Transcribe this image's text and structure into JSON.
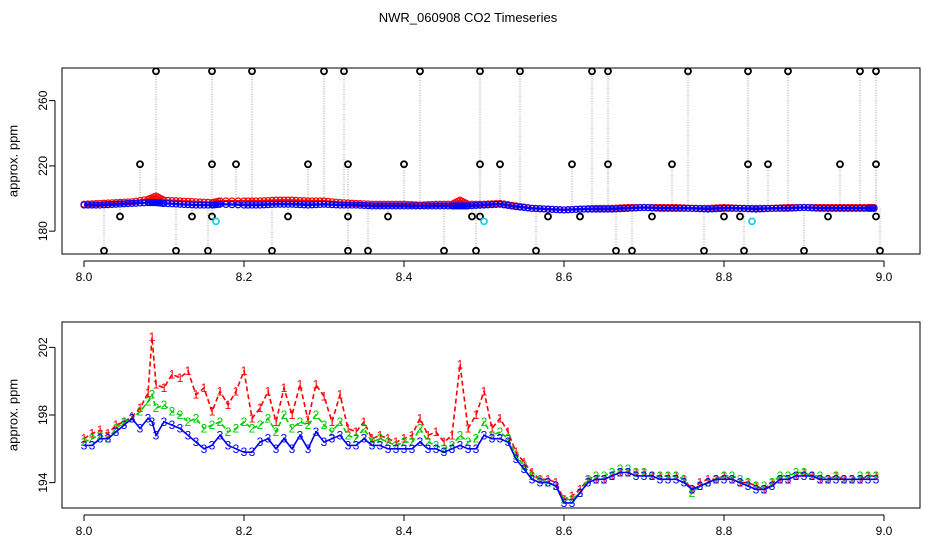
{
  "title": "NWR_060908  CO2 Timeseries",
  "colors": {
    "red": "#ff0000",
    "green": "#00cc00",
    "blue": "#0000ff",
    "cyan": "#22ccee",
    "black": "#000000",
    "gray": "#9a9a9a"
  },
  "chart_data": [
    {
      "type": "scatter",
      "panel": "top",
      "title": "",
      "xlabel": "",
      "ylabel": "approx. ppm",
      "xlim": [
        8.0,
        9.0
      ],
      "ylim": [
        166,
        280
      ],
      "xticks": [
        "8.0",
        "8.2",
        "8.4",
        "8.6",
        "8.8",
        "9.0"
      ],
      "xtick_values": [
        8.0,
        8.2,
        8.4,
        8.6,
        8.8,
        9.0
      ],
      "yticks": [
        "180",
        "220",
        "260"
      ],
      "ytick_values": [
        180,
        220,
        260
      ],
      "baseline_series": [
        {
          "name": "red",
          "x": [
            8.0,
            8.02,
            8.04,
            8.06,
            8.08,
            8.09,
            8.1,
            8.12,
            8.14,
            8.16,
            8.17,
            8.2,
            8.22,
            8.24,
            8.26,
            8.28,
            8.3,
            8.32,
            8.34,
            8.36,
            8.38,
            8.4,
            8.42,
            8.44,
            8.46,
            8.47,
            8.48,
            8.5,
            8.52,
            8.54,
            8.56,
            8.58,
            8.6,
            8.62,
            8.64,
            8.66,
            8.68,
            8.7,
            8.72,
            8.74,
            8.76,
            8.78,
            8.8,
            8.82,
            8.84,
            8.86,
            8.88,
            8.9,
            8.92,
            8.94,
            8.96,
            8.98,
            8.99
          ],
          "values": [
            196.5,
            197,
            197.5,
            198,
            199.5,
            201.5,
            199,
            198.5,
            198,
            197.5,
            198.5,
            198.5,
            198.5,
            199,
            199,
            198.5,
            198.5,
            197.5,
            197,
            196.5,
            196.5,
            196.5,
            196,
            196.5,
            196.5,
            199,
            196.5,
            196.5,
            197,
            195.5,
            194,
            193.5,
            193,
            193.5,
            194,
            194,
            194.5,
            194.5,
            194.5,
            194.5,
            194,
            194,
            194.5,
            194,
            194,
            194,
            194.5,
            194.5,
            194.5,
            194.5,
            194.5,
            194.5,
            194.5
          ]
        },
        {
          "name": "blue",
          "x": [
            8.0,
            8.02,
            8.04,
            8.06,
            8.08,
            8.09,
            8.1,
            8.12,
            8.14,
            8.16,
            8.17,
            8.2,
            8.22,
            8.24,
            8.26,
            8.28,
            8.3,
            8.32,
            8.34,
            8.36,
            8.38,
            8.4,
            8.42,
            8.44,
            8.46,
            8.47,
            8.48,
            8.5,
            8.52,
            8.54,
            8.56,
            8.58,
            8.6,
            8.62,
            8.64,
            8.66,
            8.68,
            8.7,
            8.72,
            8.74,
            8.76,
            8.78,
            8.8,
            8.82,
            8.84,
            8.86,
            8.88,
            8.9,
            8.92,
            8.94,
            8.96,
            8.98,
            8.99
          ],
          "values": [
            196,
            196,
            196.5,
            197,
            197.5,
            197.5,
            197,
            196.5,
            196,
            196,
            196.5,
            196,
            196,
            196.5,
            196.5,
            196,
            196.5,
            196,
            196,
            195.5,
            195.5,
            195.5,
            195.5,
            195.5,
            195.5,
            195.5,
            195.5,
            196,
            196.5,
            195,
            194,
            193.5,
            193,
            193.5,
            193.5,
            193.5,
            194,
            194.5,
            194,
            194,
            194,
            193.5,
            194,
            194,
            193.5,
            194,
            194,
            194.5,
            194,
            194,
            194,
            194,
            194
          ]
        }
      ],
      "spike_high": [
        8.09,
        8.16,
        8.21,
        8.3,
        8.325,
        8.42,
        8.495,
        8.545,
        8.635,
        8.655,
        8.755,
        8.83,
        8.88,
        8.97,
        8.99
      ],
      "spike_high_value": 278,
      "spike_mid": [
        8.07,
        8.16,
        8.19,
        8.28,
        8.33,
        8.4,
        8.495,
        8.52,
        8.61,
        8.655,
        8.735,
        8.83,
        8.855,
        8.945,
        8.99
      ],
      "spike_mid_value": 221,
      "spike_low": [
        8.025,
        8.115,
        8.155,
        8.235,
        8.33,
        8.355,
        8.45,
        8.49,
        8.565,
        8.665,
        8.685,
        8.775,
        8.825,
        8.9,
        8.995
      ],
      "spike_low_value": 168,
      "dip_points": [
        8.045,
        8.135,
        8.16,
        8.255,
        8.33,
        8.38,
        8.485,
        8.495,
        8.58,
        8.62,
        8.71,
        8.8,
        8.82,
        8.93,
        8.99
      ],
      "dip_value": 189,
      "cyan_points": {
        "x": [
          8.165,
          8.5,
          8.835
        ],
        "values": [
          186,
          186,
          186
        ]
      }
    },
    {
      "type": "line",
      "panel": "bottom",
      "title": "",
      "xlabel": "",
      "ylabel": "approx. ppm",
      "xlim": [
        8.0,
        9.0
      ],
      "ylim": [
        192.5,
        203.5
      ],
      "xticks": [
        "8.0",
        "8.2",
        "8.4",
        "8.6",
        "8.8",
        "9.0"
      ],
      "xtick_values": [
        8.0,
        8.2,
        8.4,
        8.6,
        8.8,
        9.0
      ],
      "yticks": [
        "194",
        "198",
        "202"
      ],
      "ytick_values": [
        194,
        198,
        202
      ],
      "series": [
        {
          "name": "1",
          "marker": "1",
          "color": "red",
          "x": [
            8.0,
            8.01,
            8.02,
            8.03,
            8.04,
            8.05,
            8.06,
            8.07,
            8.08,
            8.085,
            8.09,
            8.1,
            8.11,
            8.12,
            8.13,
            8.14,
            8.15,
            8.16,
            8.17,
            8.18,
            8.19,
            8.2,
            8.21,
            8.22,
            8.23,
            8.24,
            8.25,
            8.26,
            8.27,
            8.28,
            8.29,
            8.3,
            8.31,
            8.32,
            8.33,
            8.34,
            8.35,
            8.36,
            8.37,
            8.38,
            8.39,
            8.4,
            8.41,
            8.42,
            8.43,
            8.44,
            8.45,
            8.46,
            8.47,
            8.48,
            8.49,
            8.5,
            8.51,
            8.52,
            8.53,
            8.54,
            8.55,
            8.56,
            8.57,
            8.58,
            8.59,
            8.6,
            8.61,
            8.62,
            8.63,
            8.64,
            8.65,
            8.66,
            8.67,
            8.68,
            8.69,
            8.7,
            8.71,
            8.72,
            8.73,
            8.74,
            8.75,
            8.76,
            8.77,
            8.78,
            8.79,
            8.8,
            8.81,
            8.82,
            8.83,
            8.84,
            8.85,
            8.86,
            8.87,
            8.88,
            8.89,
            8.9,
            8.91,
            8.92,
            8.93,
            8.94,
            8.95,
            8.96,
            8.97,
            8.98,
            8.99
          ],
          "values": [
            196.6,
            196.9,
            197.1,
            196.9,
            197.4,
            197.6,
            197.9,
            198.4,
            199.3,
            202.6,
            199.8,
            199.6,
            200.4,
            200.2,
            200.6,
            199.2,
            199.6,
            198.2,
            199.4,
            198.6,
            199.4,
            200.6,
            197.8,
            198.4,
            199.4,
            197.6,
            199.6,
            198.0,
            199.8,
            197.7,
            199.8,
            199.1,
            197.6,
            199.2,
            197.2,
            197.0,
            197.6,
            196.6,
            196.8,
            196.6,
            196.4,
            196.6,
            196.8,
            197.8,
            196.8,
            197.0,
            196.4,
            196.8,
            201.0,
            197.2,
            198.0,
            199.4,
            197.2,
            197.8,
            197.0,
            195.8,
            195.2,
            194.6,
            194.2,
            194.2,
            194.0,
            193.0,
            193.2,
            193.6,
            194.2,
            194.2,
            194.2,
            194.4,
            194.6,
            194.6,
            194.6,
            194.6,
            194.4,
            194.4,
            194.4,
            194.4,
            194.2,
            193.6,
            194.0,
            194.2,
            194.2,
            194.4,
            194.2,
            194.0,
            194.0,
            193.8,
            193.6,
            194.0,
            194.2,
            194.2,
            194.4,
            194.6,
            194.4,
            194.2,
            194.2,
            194.4,
            194.2,
            194.2,
            194.2,
            194.4,
            194.4
          ]
        },
        {
          "name": "2",
          "marker": "2",
          "color": "green",
          "x": [
            8.0,
            8.01,
            8.02,
            8.03,
            8.04,
            8.05,
            8.06,
            8.07,
            8.08,
            8.085,
            8.09,
            8.1,
            8.11,
            8.12,
            8.13,
            8.14,
            8.15,
            8.16,
            8.17,
            8.18,
            8.19,
            8.2,
            8.21,
            8.22,
            8.23,
            8.24,
            8.25,
            8.26,
            8.27,
            8.28,
            8.29,
            8.3,
            8.31,
            8.32,
            8.33,
            8.34,
            8.35,
            8.36,
            8.37,
            8.38,
            8.39,
            8.4,
            8.41,
            8.42,
            8.43,
            8.44,
            8.45,
            8.46,
            8.47,
            8.48,
            8.49,
            8.5,
            8.51,
            8.52,
            8.53,
            8.54,
            8.55,
            8.56,
            8.57,
            8.58,
            8.59,
            8.6,
            8.61,
            8.62,
            8.63,
            8.64,
            8.65,
            8.66,
            8.67,
            8.68,
            8.69,
            8.7,
            8.71,
            8.72,
            8.73,
            8.74,
            8.75,
            8.76,
            8.77,
            8.78,
            8.79,
            8.8,
            8.81,
            8.82,
            8.83,
            8.84,
            8.85,
            8.86,
            8.87,
            8.88,
            8.89,
            8.9,
            8.91,
            8.92,
            8.93,
            8.94,
            8.95,
            8.96,
            8.97,
            8.98,
            8.99
          ],
          "values": [
            196.4,
            196.6,
            196.8,
            196.6,
            197.2,
            197.6,
            197.8,
            198.2,
            198.8,
            199.2,
            198.4,
            198.6,
            198.2,
            198.0,
            197.6,
            197.8,
            197.2,
            197.4,
            197.6,
            197.0,
            197.2,
            197.6,
            197.2,
            197.4,
            197.8,
            197.0,
            198.0,
            197.2,
            197.6,
            197.4,
            198.0,
            197.4,
            197.0,
            197.6,
            196.8,
            196.6,
            197.2,
            196.4,
            196.6,
            196.4,
            196.2,
            196.4,
            196.4,
            197.2,
            196.4,
            196.2,
            196.0,
            196.2,
            196.8,
            196.4,
            196.6,
            197.6,
            196.8,
            197.0,
            196.6,
            195.6,
            195.0,
            194.4,
            194.2,
            194.0,
            193.8,
            193.0,
            193.0,
            193.4,
            194.2,
            194.4,
            194.4,
            194.6,
            194.8,
            194.8,
            194.6,
            194.6,
            194.4,
            194.4,
            194.4,
            194.4,
            194.2,
            193.4,
            193.8,
            194.0,
            194.2,
            194.4,
            194.4,
            194.2,
            194.0,
            193.8,
            193.8,
            194.0,
            194.4,
            194.4,
            194.6,
            194.6,
            194.4,
            194.4,
            194.2,
            194.4,
            194.2,
            194.2,
            194.4,
            194.4,
            194.4
          ]
        },
        {
          "name": "3",
          "marker": "3",
          "color": "blue",
          "x": [
            8.0,
            8.01,
            8.02,
            8.03,
            8.04,
            8.05,
            8.06,
            8.07,
            8.08,
            8.085,
            8.09,
            8.1,
            8.11,
            8.12,
            8.13,
            8.14,
            8.15,
            8.16,
            8.17,
            8.18,
            8.19,
            8.2,
            8.21,
            8.22,
            8.23,
            8.24,
            8.25,
            8.26,
            8.27,
            8.28,
            8.29,
            8.3,
            8.31,
            8.32,
            8.33,
            8.34,
            8.35,
            8.36,
            8.37,
            8.38,
            8.39,
            8.4,
            8.41,
            8.42,
            8.43,
            8.44,
            8.45,
            8.46,
            8.47,
            8.48,
            8.49,
            8.5,
            8.51,
            8.52,
            8.53,
            8.54,
            8.55,
            8.56,
            8.57,
            8.58,
            8.59,
            8.6,
            8.61,
            8.62,
            8.63,
            8.64,
            8.65,
            8.66,
            8.67,
            8.68,
            8.69,
            8.7,
            8.71,
            8.72,
            8.73,
            8.74,
            8.75,
            8.76,
            8.77,
            8.78,
            8.79,
            8.8,
            8.81,
            8.82,
            8.83,
            8.84,
            8.85,
            8.86,
            8.87,
            8.88,
            8.89,
            8.9,
            8.91,
            8.92,
            8.93,
            8.94,
            8.95,
            8.96,
            8.97,
            8.98,
            8.99
          ],
          "values": [
            196.2,
            196.2,
            196.6,
            196.6,
            197.0,
            197.4,
            197.8,
            197.2,
            197.8,
            197.6,
            196.8,
            197.6,
            197.4,
            197.2,
            196.8,
            196.4,
            196.0,
            196.2,
            196.8,
            196.2,
            196.0,
            195.8,
            195.8,
            196.4,
            196.6,
            196.0,
            196.6,
            196.0,
            196.8,
            196.0,
            197.0,
            196.4,
            196.6,
            196.8,
            196.2,
            196.2,
            196.6,
            196.2,
            196.2,
            196.0,
            196.0,
            196.0,
            196.0,
            196.4,
            196.0,
            196.0,
            195.8,
            196.0,
            196.2,
            196.0,
            196.0,
            196.8,
            196.6,
            196.6,
            196.4,
            195.4,
            194.8,
            194.2,
            194.0,
            194.0,
            193.8,
            192.8,
            192.8,
            193.4,
            194.0,
            194.2,
            194.2,
            194.4,
            194.6,
            194.6,
            194.4,
            194.4,
            194.4,
            194.2,
            194.2,
            194.2,
            194.0,
            193.6,
            193.8,
            194.0,
            194.2,
            194.2,
            194.2,
            194.0,
            193.8,
            193.6,
            193.6,
            193.8,
            194.2,
            194.2,
            194.4,
            194.4,
            194.4,
            194.2,
            194.2,
            194.2,
            194.2,
            194.2,
            194.2,
            194.2,
            194.2
          ]
        }
      ]
    }
  ]
}
